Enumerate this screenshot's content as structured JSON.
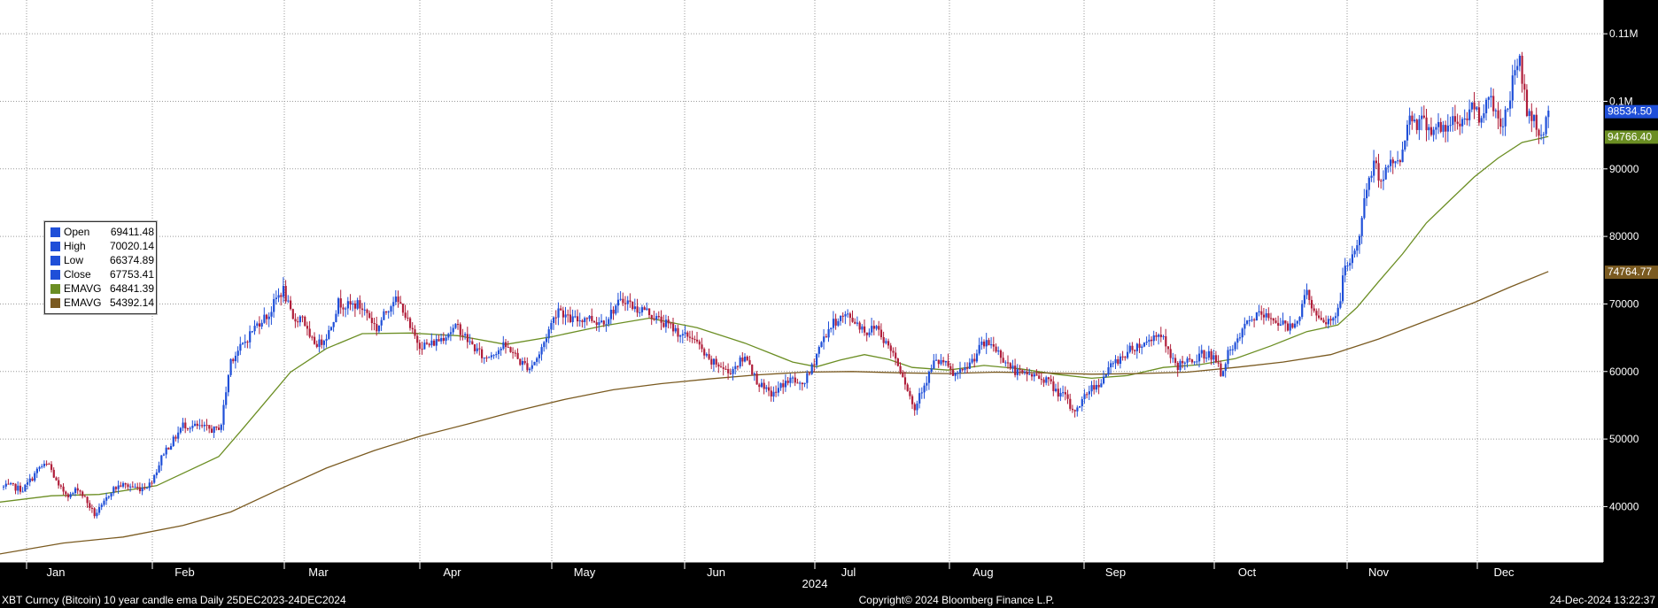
{
  "chart_data": {
    "type": "candlestick",
    "x_ticks": [
      "Jan",
      "Feb",
      "Mar",
      "Apr",
      "May",
      "Jun",
      "Jul",
      "Aug",
      "Sep",
      "Oct",
      "Nov",
      "Dec"
    ],
    "year_label": "2024",
    "y_ticks": [
      {
        "value": 40000,
        "label": "40000"
      },
      {
        "value": 50000,
        "label": "50000"
      },
      {
        "value": 60000,
        "label": "60000"
      },
      {
        "value": 70000,
        "label": "70000"
      },
      {
        "value": 80000,
        "label": "80000"
      },
      {
        "value": 90000,
        "label": "90000"
      },
      {
        "value": 100000,
        "label": "0.1M"
      },
      {
        "value": 110000,
        "label": "0.11M"
      }
    ],
    "ylim": [
      31800,
      115000
    ],
    "grid": true,
    "close_path": [
      [
        -2,
        42800
      ],
      [
        3,
        43000
      ],
      [
        8,
        42500
      ],
      [
        12,
        44300
      ],
      [
        15,
        45800
      ],
      [
        19,
        46200
      ],
      [
        23,
        42800
      ],
      [
        28,
        41600
      ],
      [
        31,
        42800
      ],
      [
        34,
        41200
      ],
      [
        38,
        38800
      ],
      [
        41,
        39900
      ],
      [
        45,
        42400
      ],
      [
        49,
        43200
      ],
      [
        53,
        43000
      ],
      [
        57,
        42700
      ],
      [
        61,
        43300
      ],
      [
        64,
        45400
      ],
      [
        67,
        48100
      ],
      [
        71,
        49800
      ],
      [
        75,
        52100
      ],
      [
        79,
        51900
      ],
      [
        83,
        51700
      ],
      [
        87,
        51400
      ],
      [
        89,
        51300
      ],
      [
        91,
        52300
      ],
      [
        93,
        57100
      ],
      [
        95,
        61800
      ],
      [
        97,
        62600
      ],
      [
        100,
        63900
      ],
      [
        104,
        66100
      ],
      [
        108,
        67800
      ],
      [
        111,
        68400
      ],
      [
        114,
        70800
      ],
      [
        117,
        72100
      ],
      [
        121,
        67400
      ],
      [
        125,
        68300
      ],
      [
        128,
        64600
      ],
      [
        132,
        64100
      ],
      [
        136,
        65900
      ],
      [
        140,
        70200
      ],
      [
        144,
        69700
      ],
      [
        148,
        69900
      ],
      [
        152,
        68700
      ],
      [
        156,
        66300
      ],
      [
        160,
        68900
      ],
      [
        163,
        70800
      ],
      [
        167,
        69400
      ],
      [
        170,
        66200
      ],
      [
        174,
        64000
      ],
      [
        178,
        63900
      ],
      [
        182,
        64700
      ],
      [
        186,
        65800
      ],
      [
        190,
        66600
      ],
      [
        194,
        64600
      ],
      [
        198,
        63100
      ],
      [
        201,
        61900
      ],
      [
        205,
        62900
      ],
      [
        209,
        63700
      ],
      [
        212,
        63300
      ],
      [
        216,
        61400
      ],
      [
        220,
        60600
      ],
      [
        224,
        62500
      ],
      [
        228,
        66200
      ],
      [
        232,
        69500
      ],
      [
        236,
        67800
      ],
      [
        240,
        67600
      ],
      [
        244,
        68100
      ],
      [
        248,
        67400
      ],
      [
        252,
        67700
      ],
      [
        256,
        69700
      ],
      [
        260,
        70700
      ],
      [
        264,
        69300
      ],
      [
        268,
        69200
      ],
      [
        272,
        68100
      ],
      [
        276,
        67200
      ],
      [
        280,
        66400
      ],
      [
        284,
        65200
      ],
      [
        288,
        65200
      ],
      [
        291,
        63600
      ],
      [
        295,
        61400
      ],
      [
        299,
        61000
      ],
      [
        303,
        59800
      ],
      [
        307,
        61200
      ],
      [
        311,
        62200
      ],
      [
        314,
        59200
      ],
      [
        318,
        57200
      ],
      [
        322,
        56600
      ],
      [
        326,
        58200
      ],
      [
        330,
        58900
      ],
      [
        333,
        57700
      ],
      [
        337,
        59600
      ],
      [
        341,
        63600
      ],
      [
        345,
        66300
      ],
      [
        349,
        67900
      ],
      [
        353,
        68200
      ],
      [
        357,
        67200
      ],
      [
        361,
        65800
      ],
      [
        365,
        66800
      ],
      [
        369,
        64200
      ],
      [
        372,
        62800
      ],
      [
        376,
        59600
      ],
      [
        379,
        56300
      ],
      [
        381,
        54200
      ],
      [
        383,
        56900
      ],
      [
        386,
        58800
      ],
      [
        389,
        61300
      ],
      [
        393,
        61400
      ],
      [
        397,
        59500
      ],
      [
        401,
        59800
      ],
      [
        405,
        61600
      ],
      [
        409,
        63900
      ],
      [
        413,
        64100
      ],
      [
        417,
        62400
      ],
      [
        421,
        60600
      ],
      [
        425,
        59600
      ],
      [
        429,
        59600
      ],
      [
        433,
        59100
      ],
      [
        436,
        58900
      ],
      [
        440,
        57100
      ],
      [
        444,
        56200
      ],
      [
        447,
        53900
      ],
      [
        451,
        55700
      ],
      [
        454,
        57400
      ],
      [
        458,
        58200
      ],
      [
        461,
        59800
      ],
      [
        465,
        61500
      ],
      [
        469,
        62600
      ],
      [
        473,
        63700
      ],
      [
        477,
        64100
      ],
      [
        481,
        65300
      ],
      [
        484,
        65600
      ],
      [
        488,
        61800
      ],
      [
        491,
        60800
      ],
      [
        494,
        61800
      ],
      [
        497,
        60900
      ],
      [
        500,
        62400
      ],
      [
        503,
        62700
      ],
      [
        506,
        62100
      ],
      [
        509,
        59800
      ],
      [
        512,
        62500
      ],
      [
        515,
        63600
      ],
      [
        518,
        66100
      ],
      [
        521,
        67400
      ],
      [
        524,
        68400
      ],
      [
        527,
        68100
      ],
      [
        531,
        67900
      ],
      [
        534,
        67100
      ],
      [
        537,
        66600
      ],
      [
        540,
        67500
      ],
      [
        542,
        68400
      ],
      [
        545,
        72200
      ],
      [
        548,
        68600
      ],
      [
        551,
        67100
      ],
      [
        555,
        67600
      ],
      [
        558,
        68900
      ],
      [
        561,
        75700
      ],
      [
        564,
        76600
      ],
      [
        567,
        80400
      ],
      [
        570,
        87300
      ],
      [
        573,
        90500
      ],
      [
        576,
        88600
      ],
      [
        579,
        90400
      ],
      [
        582,
        91100
      ],
      [
        585,
        92400
      ],
      [
        588,
        98400
      ],
      [
        591,
        96800
      ],
      [
        594,
        97200
      ],
      [
        597,
        95800
      ],
      [
        600,
        96400
      ],
      [
        603,
        95200
      ],
      [
        606,
        97300
      ],
      [
        609,
        96600
      ],
      [
        611,
        97400
      ],
      [
        614,
        99500
      ],
      [
        617,
        97800
      ],
      [
        620,
        99800
      ],
      [
        622,
        100200
      ],
      [
        624,
        98400
      ],
      [
        627,
        96400
      ],
      [
        630,
        101200
      ],
      [
        632,
        104600
      ],
      [
        634,
        106200
      ],
      [
        637,
        98500
      ],
      [
        640,
        97200
      ],
      [
        643,
        94800
      ],
      [
        646,
        98500
      ]
    ],
    "series": [
      {
        "name": "EMAVG",
        "color": "#6b8e23",
        "points": [
          [
            -3,
            40600
          ],
          [
            20,
            41600
          ],
          [
            40,
            41800
          ],
          [
            64,
            43100
          ],
          [
            90,
            47400
          ],
          [
            100,
            51500
          ],
          [
            110,
            55700
          ],
          [
            120,
            59900
          ],
          [
            135,
            63400
          ],
          [
            150,
            65600
          ],
          [
            170,
            65700
          ],
          [
            190,
            65300
          ],
          [
            210,
            64000
          ],
          [
            230,
            65200
          ],
          [
            250,
            66700
          ],
          [
            270,
            67900
          ],
          [
            290,
            66500
          ],
          [
            310,
            64200
          ],
          [
            320,
            62800
          ],
          [
            330,
            61400
          ],
          [
            340,
            60700
          ],
          [
            350,
            61700
          ],
          [
            360,
            62500
          ],
          [
            370,
            61800
          ],
          [
            380,
            60600
          ],
          [
            395,
            60200
          ],
          [
            410,
            60900
          ],
          [
            425,
            60400
          ],
          [
            440,
            59600
          ],
          [
            455,
            59000
          ],
          [
            470,
            59400
          ],
          [
            485,
            60600
          ],
          [
            500,
            61000
          ],
          [
            515,
            61900
          ],
          [
            530,
            63800
          ],
          [
            545,
            65900
          ],
          [
            558,
            66900
          ],
          [
            566,
            69500
          ],
          [
            575,
            73300
          ],
          [
            585,
            77400
          ],
          [
            595,
            82000
          ],
          [
            605,
            85400
          ],
          [
            615,
            88800
          ],
          [
            625,
            91600
          ],
          [
            635,
            93900
          ],
          [
            646,
            94800
          ]
        ]
      },
      {
        "name": "EMAVG",
        "color": "#7a5a20",
        "points": [
          [
            -3,
            32900
          ],
          [
            25,
            34600
          ],
          [
            50,
            35500
          ],
          [
            75,
            37200
          ],
          [
            95,
            39200
          ],
          [
            115,
            42500
          ],
          [
            135,
            45700
          ],
          [
            155,
            48300
          ],
          [
            175,
            50500
          ],
          [
            195,
            52300
          ],
          [
            215,
            54200
          ],
          [
            235,
            55900
          ],
          [
            255,
            57300
          ],
          [
            275,
            58200
          ],
          [
            295,
            58900
          ],
          [
            315,
            59500
          ],
          [
            335,
            59900
          ],
          [
            355,
            60000
          ],
          [
            375,
            59800
          ],
          [
            395,
            59700
          ],
          [
            415,
            59900
          ],
          [
            435,
            59800
          ],
          [
            455,
            59600
          ],
          [
            475,
            59700
          ],
          [
            495,
            59900
          ],
          [
            515,
            60600
          ],
          [
            535,
            61400
          ],
          [
            555,
            62500
          ],
          [
            575,
            64800
          ],
          [
            595,
            67500
          ],
          [
            615,
            70200
          ],
          [
            630,
            72500
          ],
          [
            646,
            74800
          ]
        ]
      }
    ],
    "last_values": [
      {
        "label": "98534.50",
        "value": 98534.5,
        "color": "#1f4fd8"
      },
      {
        "label": "94766.40",
        "value": 94766.4,
        "color": "#6b8e23"
      },
      {
        "label": "74764.77",
        "value": 74764.77,
        "color": "#7a5a20"
      }
    ],
    "legend": [
      {
        "name": "Open",
        "value": "69411.48",
        "color": "#1f4fd8"
      },
      {
        "name": "High",
        "value": "70020.14",
        "color": "#1f4fd8"
      },
      {
        "name": "Low",
        "value": "66374.89",
        "color": "#1f4fd8"
      },
      {
        "name": "Close",
        "value": "67753.41",
        "color": "#1f4fd8"
      },
      {
        "name": "EMAVG",
        "value": "64841.39",
        "color": "#6b8e23"
      },
      {
        "name": "EMAVG",
        "value": "54392.14",
        "color": "#7a5a20"
      }
    ],
    "legend_placement": "middle-left",
    "up_color": "#1f4fd8",
    "down_color": "#b01e3a"
  },
  "footer": {
    "left": "XBT Curncy (Bitcoin) 10 year candle ema  Daily 25DEC2023-24DEC2024",
    "center": "Copyright© 2024 Bloomberg Finance L.P.",
    "right": "24-Dec-2024 13:22:37"
  }
}
